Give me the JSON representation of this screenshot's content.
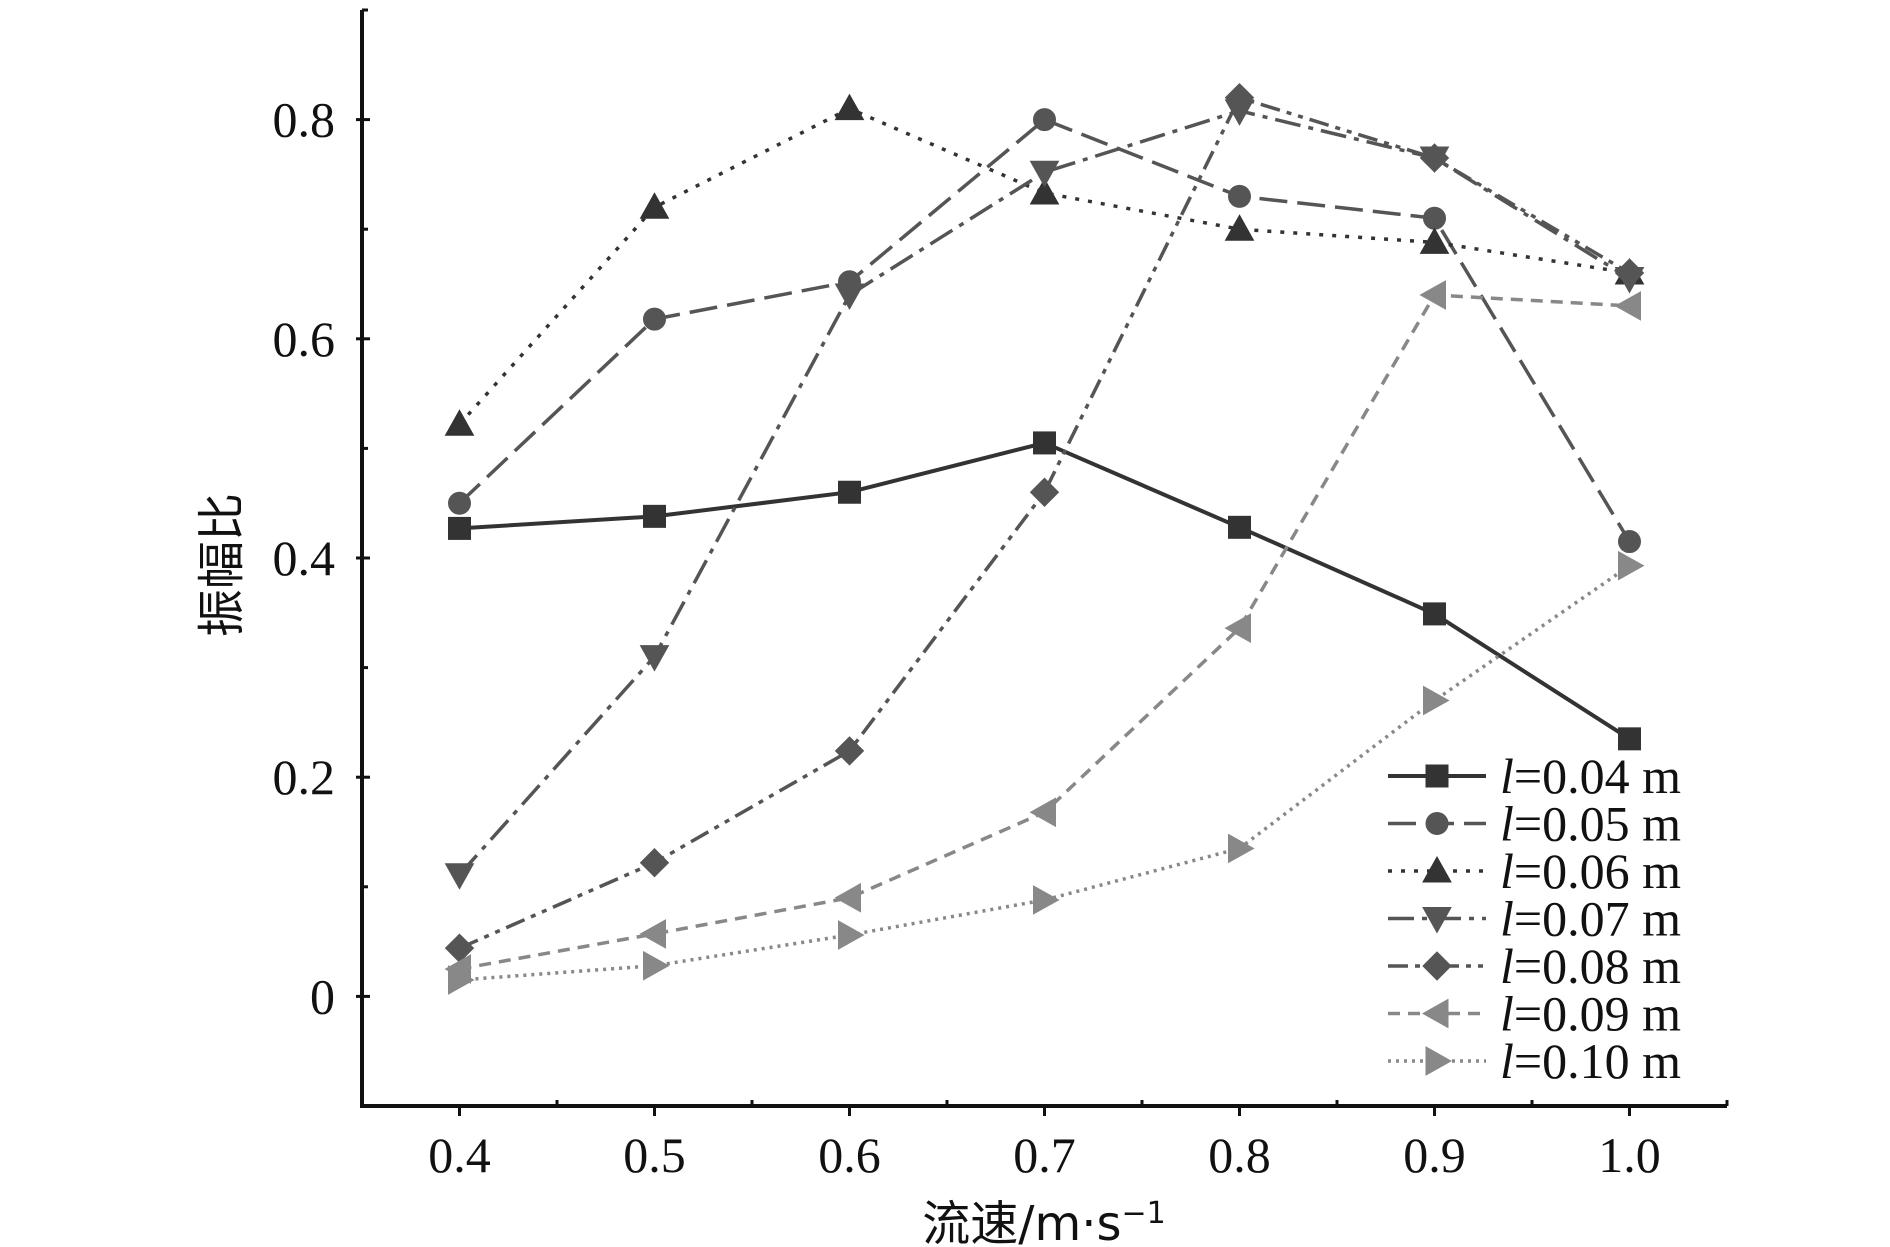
{
  "chart_data": {
    "type": "line",
    "title": "",
    "xlabel": "流速/m·s",
    "xlabel_superscript": "−1",
    "ylabel": "振幅比",
    "x": [
      0.4,
      0.5,
      0.6,
      0.7,
      0.8,
      0.9,
      1.0
    ],
    "xlim": [
      0.35,
      1.05
    ],
    "ylim": [
      -0.1,
      0.9
    ],
    "xticks": [
      0.4,
      0.5,
      0.6,
      0.7,
      0.8,
      0.9,
      1.0
    ],
    "xtick_labels": [
      "0.4",
      "0.5",
      "0.6",
      "0.7",
      "0.8",
      "0.9",
      "1.0"
    ],
    "yticks": [
      0,
      0.2,
      0.4,
      0.6,
      0.8
    ],
    "ytick_labels": [
      "0",
      "0.2",
      "0.4",
      "0.6",
      "0.8"
    ],
    "grid": false,
    "legend_position": "bottom-right",
    "series": [
      {
        "name": "l=0.04 m",
        "legend_var": "l",
        "legend_rest": "=0.04 m",
        "marker": "square",
        "dash": "solid",
        "color": "#333333",
        "values": [
          0.427,
          0.438,
          0.46,
          0.505,
          0.428,
          0.349,
          0.235
        ]
      },
      {
        "name": "l=0.05 m",
        "legend_var": "l",
        "legend_rest": "=0.05 m",
        "marker": "circle",
        "dash": "long-dash",
        "color": "#555555",
        "values": [
          0.45,
          0.618,
          0.652,
          0.8,
          0.73,
          0.71,
          0.415
        ]
      },
      {
        "name": "l=0.06 m",
        "legend_var": "l",
        "legend_rest": "=0.06 m",
        "marker": "triangle-up",
        "dash": "dot",
        "color": "#333333",
        "values": [
          0.522,
          0.72,
          0.81,
          0.733,
          0.7,
          0.688,
          0.66
        ]
      },
      {
        "name": "l=0.07 m",
        "legend_var": "l",
        "legend_rest": "=0.07 m",
        "marker": "triangle-down",
        "dash": "dash-dot",
        "color": "#555555",
        "values": [
          0.111,
          0.31,
          0.64,
          0.752,
          0.808,
          0.765,
          0.655
        ]
      },
      {
        "name": "l=0.08 m",
        "legend_var": "l",
        "legend_rest": "=0.08 m",
        "marker": "diamond",
        "dash": "dash-dot-dot",
        "color": "#555555",
        "values": [
          0.044,
          0.122,
          0.224,
          0.46,
          0.82,
          0.765,
          0.66
        ]
      },
      {
        "name": "l=0.09 m",
        "legend_var": "l",
        "legend_rest": "=0.09 m",
        "marker": "triangle-left",
        "dash": "short-dash",
        "color": "#888888",
        "values": [
          0.025,
          0.057,
          0.09,
          0.168,
          0.336,
          0.64,
          0.63
        ]
      },
      {
        "name": "l=0.10 m",
        "legend_var": "l",
        "legend_rest": "=0.10 m",
        "marker": "triangle-right",
        "dash": "fine-dot",
        "color": "#888888",
        "values": [
          0.015,
          0.028,
          0.056,
          0.088,
          0.135,
          0.27,
          0.393
        ]
      }
    ]
  }
}
